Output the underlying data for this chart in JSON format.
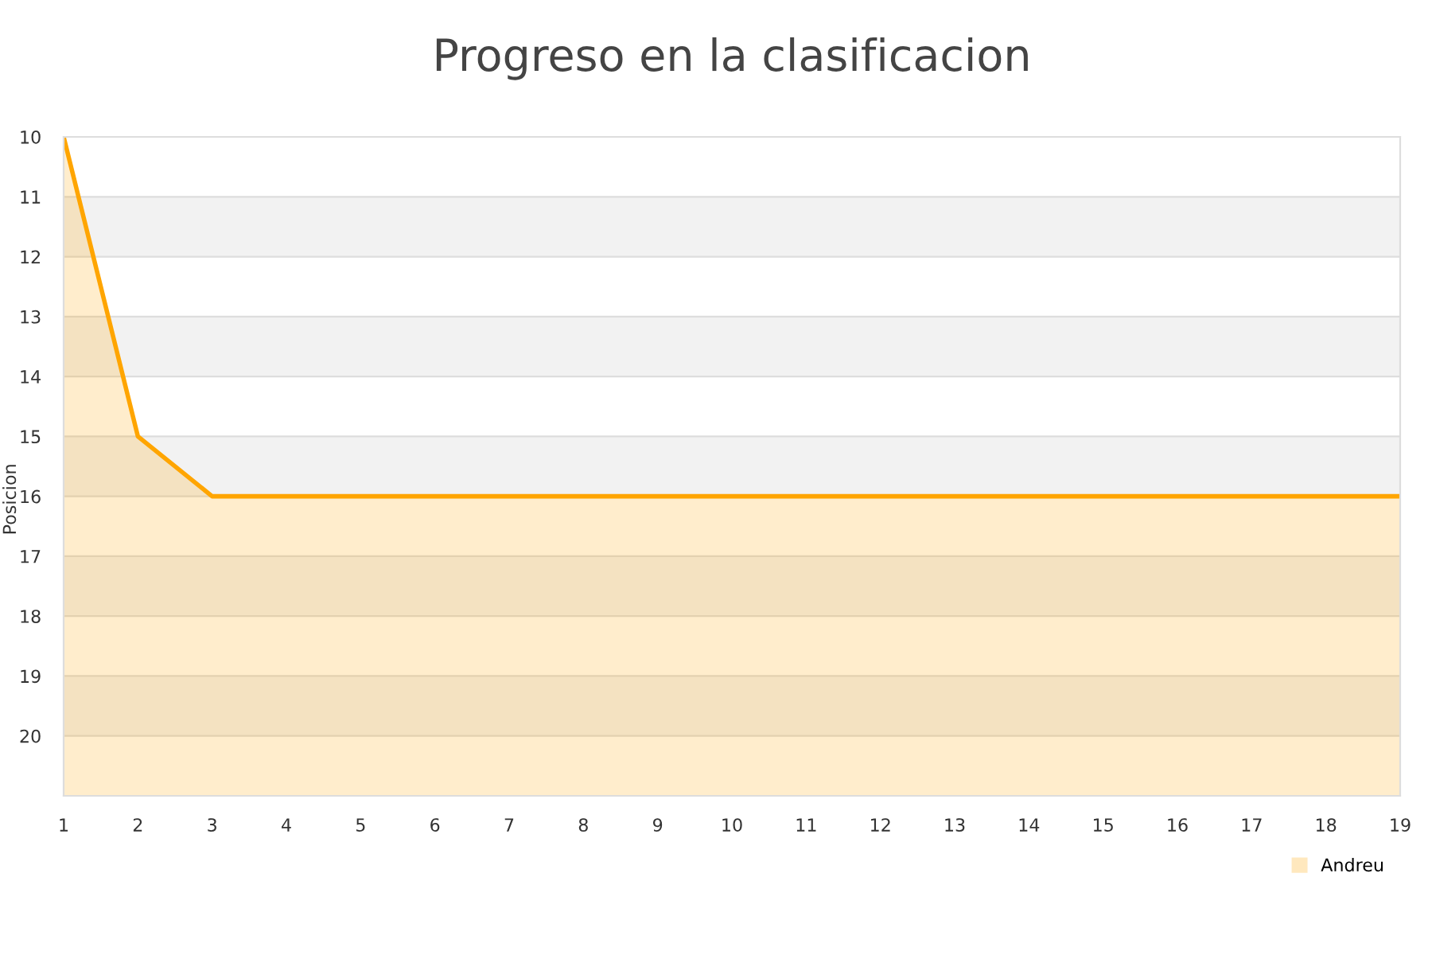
{
  "chart_data": {
    "type": "area",
    "title": "Progreso en la clasificacion",
    "ylabel": "Posicion",
    "x": [
      1,
      2,
      3,
      4,
      5,
      6,
      7,
      8,
      9,
      10,
      11,
      12,
      13,
      14,
      15,
      16,
      17,
      18,
      19
    ],
    "series": [
      {
        "name": "Andreu",
        "color": "#ffa500",
        "values": [
          10,
          15,
          16,
          16,
          16,
          16,
          16,
          16,
          16,
          16,
          16,
          16,
          16,
          16,
          16,
          16,
          16,
          16,
          16
        ]
      }
    ],
    "xlim": [
      1,
      19
    ],
    "xticks": [
      1,
      2,
      3,
      4,
      5,
      6,
      7,
      8,
      9,
      10,
      11,
      12,
      13,
      14,
      15,
      16,
      17,
      18,
      19
    ],
    "ylim": [
      21,
      10
    ],
    "yticks": [
      10,
      11,
      12,
      13,
      14,
      15,
      16,
      17,
      18,
      19,
      20
    ],
    "grid": "y",
    "legend": "bottom right"
  }
}
